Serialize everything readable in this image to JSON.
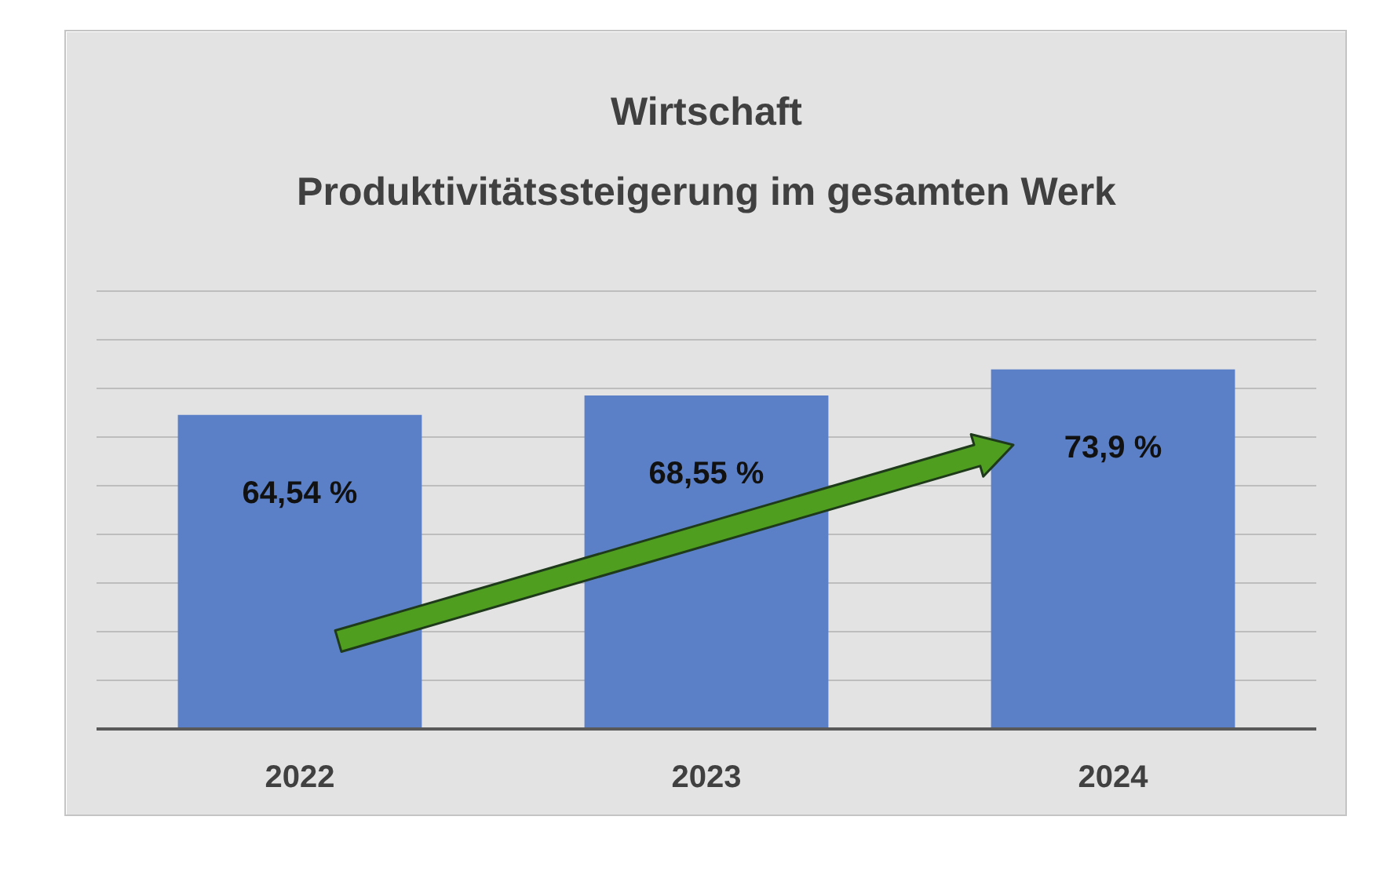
{
  "chart_data": {
    "type": "bar",
    "title": "Wirtschaft",
    "subtitle": "Produktivitätssteigerung im gesamten Werk",
    "categories": [
      "2022",
      "2023",
      "2024"
    ],
    "values": [
      64.54,
      68.55,
      73.9
    ],
    "value_labels": [
      "64,54 %",
      "68,55 %",
      "73,9 %"
    ],
    "color": "#5b80c8",
    "ylim": [
      0,
      100
    ],
    "yticks": [
      0,
      10,
      20,
      30,
      40,
      50,
      60,
      70,
      80,
      90,
      100
    ],
    "tick_labels": "x",
    "grid": "y"
  }
}
